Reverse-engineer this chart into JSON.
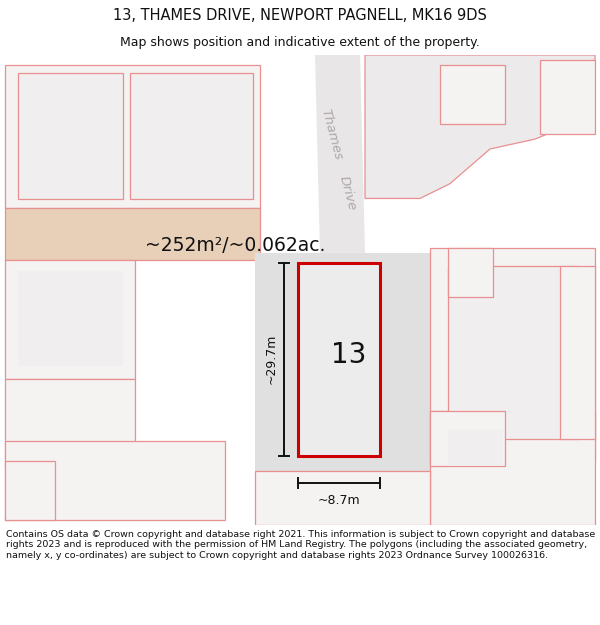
{
  "title": "13, THAMES DRIVE, NEWPORT PAGNELL, MK16 9DS",
  "subtitle": "Map shows position and indicative extent of the property.",
  "area_text": "~252m²/~0.062ac.",
  "dim_width": "~8.7m",
  "dim_height": "~29.7m",
  "label_number": "13",
  "footer": "Contains OS data © Crown copyright and database right 2021. This information is subject to Crown copyright and database rights 2023 and is reproduced with the permission of HM Land Registry. The polygons (including the associated geometry, namely x, y co-ordinates) are subject to Crown copyright and database rights 2023 Ordnance Survey 100026316.",
  "road_label_1": "Thames",
  "road_label_2": "Drive",
  "plot_color": "#cc0000",
  "neighbor_stroke": "#e89090",
  "tan_fill": "#e8d0b8",
  "gray_fill": "#e0e0e0",
  "map_bg": "#f0eeee",
  "white_bg": "#ffffff",
  "neighbor_fill": "#f5f2f2"
}
